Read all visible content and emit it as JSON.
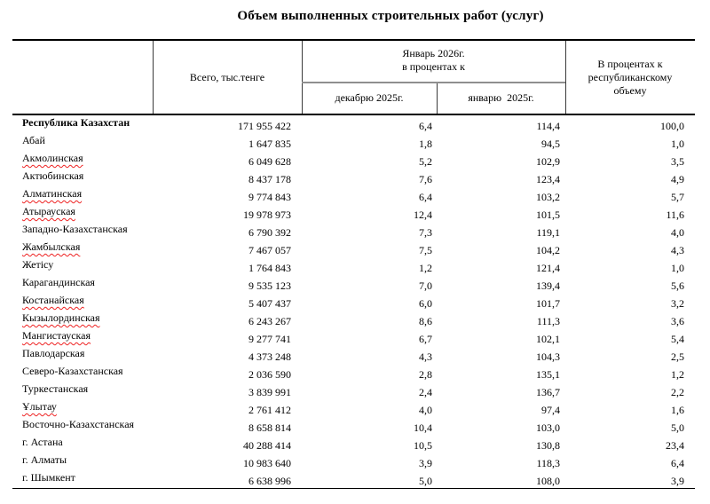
{
  "title": "Объем выполненных строительных работ (услуг)",
  "table": {
    "headers": {
      "total": "Всего, тыс.тенге",
      "period_span": "Январь 2026г.\nв процентах к",
      "sub_december": "декабрю 2025г.",
      "sub_january": "январю  2025г.",
      "share": "В процентах к\nреспубликанскому\nобъему"
    },
    "rows": [
      {
        "region": "Республика Казахстан",
        "bold": true,
        "misspelled": false,
        "total": "171 955 422",
        "to_dec": "6,4",
        "to_jan": "114,4",
        "share": "100,0"
      },
      {
        "region": "Абай",
        "bold": false,
        "misspelled": false,
        "total": "1 647 835",
        "to_dec": "1,8",
        "to_jan": "94,5",
        "share": "1,0"
      },
      {
        "region": "Акмолинская",
        "bold": false,
        "misspelled": true,
        "total": "6 049 628",
        "to_dec": "5,2",
        "to_jan": "102,9",
        "share": "3,5"
      },
      {
        "region": "Актюбинская",
        "bold": false,
        "misspelled": false,
        "total": "8 437 178",
        "to_dec": "7,6",
        "to_jan": "123,4",
        "share": "4,9"
      },
      {
        "region": "Алматинская",
        "bold": false,
        "misspelled": true,
        "total": "9 774 843",
        "to_dec": "6,4",
        "to_jan": "103,2",
        "share": "5,7"
      },
      {
        "region": "Атырауская",
        "bold": false,
        "misspelled": true,
        "total": "19 978 973",
        "to_dec": "12,4",
        "to_jan": "101,5",
        "share": "11,6"
      },
      {
        "region": "Западно-Казахстанская",
        "bold": false,
        "misspelled": false,
        "total": "6 790 392",
        "to_dec": "7,3",
        "to_jan": "119,1",
        "share": "4,0"
      },
      {
        "region": "Жамбылская",
        "bold": false,
        "misspelled": true,
        "total": "7 467 057",
        "to_dec": "7,5",
        "to_jan": "104,2",
        "share": "4,3"
      },
      {
        "region": "Жетісу",
        "bold": false,
        "misspelled": false,
        "total": "1 764 843",
        "to_dec": "1,2",
        "to_jan": "121,4",
        "share": "1,0"
      },
      {
        "region": "Карагандинская",
        "bold": false,
        "misspelled": false,
        "total": "9 535 123",
        "to_dec": "7,0",
        "to_jan": "139,4",
        "share": "5,6"
      },
      {
        "region": "Костанайская",
        "bold": false,
        "misspelled": true,
        "total": "5 407 437",
        "to_dec": "6,0",
        "to_jan": "101,7",
        "share": "3,2"
      },
      {
        "region": "Кызылординская",
        "bold": false,
        "misspelled": true,
        "total": "6 243 267",
        "to_dec": "8,6",
        "to_jan": "111,3",
        "share": "3,6"
      },
      {
        "region": "Мангистауская",
        "bold": false,
        "misspelled": true,
        "total": "9 277 741",
        "to_dec": "6,7",
        "to_jan": "102,1",
        "share": "5,4"
      },
      {
        "region": "Павлодарская",
        "bold": false,
        "misspelled": false,
        "total": "4 373 248",
        "to_dec": "4,3",
        "to_jan": "104,3",
        "share": "2,5"
      },
      {
        "region": "Северо-Казахстанская",
        "bold": false,
        "misspelled": false,
        "total": "2 036 590",
        "to_dec": "2,8",
        "to_jan": "135,1",
        "share": "1,2"
      },
      {
        "region": "Туркестанская",
        "bold": false,
        "misspelled": false,
        "total": "3 839 991",
        "to_dec": "2,4",
        "to_jan": "136,7",
        "share": "2,2"
      },
      {
        "region": "Ұлытау",
        "bold": false,
        "misspelled": true,
        "total": "2 761 412",
        "to_dec": "4,0",
        "to_jan": "97,4",
        "share": "1,6"
      },
      {
        "region": "Восточно-Казахстанская",
        "bold": false,
        "misspelled": false,
        "total": "8 658 814",
        "to_dec": "10,4",
        "to_jan": "103,0",
        "share": "5,0"
      },
      {
        "region": "г. Астана",
        "bold": false,
        "misspelled": false,
        "total": "40 288 414",
        "to_dec": "10,5",
        "to_jan": "130,8",
        "share": "23,4"
      },
      {
        "region": "г. Алматы",
        "bold": false,
        "misspelled": false,
        "total": "10 983 640",
        "to_dec": "3,9",
        "to_jan": "118,3",
        "share": "6,4"
      },
      {
        "region": "г. Шымкент",
        "bold": false,
        "misspelled": false,
        "total": "6 638 996",
        "to_dec": "5,0",
        "to_jan": "108,0",
        "share": "3,9"
      }
    ]
  },
  "colors": {
    "text": "#000000",
    "rule": "#000000",
    "inner_rule_gray": "#8f8f8f",
    "spellcheck_red": "#ee2222"
  }
}
